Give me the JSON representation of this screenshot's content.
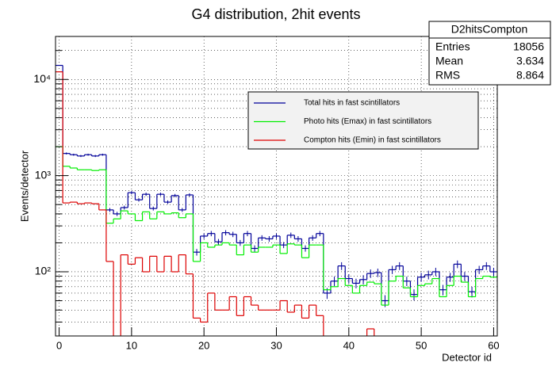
{
  "chart_data": {
    "type": "histogram",
    "title": "G4 distribution, 2hit events",
    "xlabel": "Detector id",
    "ylabel": "Events/detector",
    "log_y": true,
    "grid": true,
    "xlim": [
      -0.5,
      60.5
    ],
    "ylim": [
      21.5,
      28000
    ],
    "xticks": [
      0,
      10,
      20,
      30,
      40,
      50,
      60
    ],
    "yticks": [
      {
        "value": 100,
        "label": "10²"
      },
      {
        "value": 1000,
        "label": "10³"
      },
      {
        "value": 10000,
        "label": "10⁴"
      }
    ],
    "yminor": [
      30,
      40,
      50,
      60,
      70,
      80,
      90,
      200,
      300,
      400,
      500,
      600,
      700,
      800,
      900,
      2000,
      3000,
      4000,
      5000,
      6000,
      7000,
      8000,
      9000,
      20000
    ],
    "x": [
      0,
      1,
      2,
      3,
      4,
      5,
      6,
      7,
      8,
      9,
      10,
      11,
      12,
      13,
      14,
      15,
      16,
      17,
      18,
      19,
      20,
      21,
      22,
      23,
      24,
      25,
      26,
      27,
      28,
      29,
      30,
      31,
      32,
      33,
      34,
      35,
      36,
      37,
      38,
      39,
      40,
      41,
      42,
      43,
      44,
      45,
      46,
      47,
      48,
      49,
      50,
      51,
      52,
      53,
      54,
      55,
      56,
      57,
      58,
      59,
      60
    ],
    "series": [
      {
        "name": "Total hits in fast scintillators",
        "color": "#000099",
        "error_crosses": true,
        "values": [
          14000,
          1700,
          1650,
          1600,
          1650,
          1600,
          1650,
          440,
          400,
          465,
          665,
          560,
          640,
          455,
          640,
          530,
          620,
          440,
          630,
          160,
          235,
          250,
          205,
          255,
          245,
          200,
          250,
          175,
          225,
          220,
          235,
          190,
          240,
          220,
          175,
          225,
          250,
          60,
          80,
          115,
          85,
          76,
          83,
          96,
          98,
          50,
          105,
          115,
          80,
          58,
          88,
          93,
          100,
          65,
          88,
          120,
          90,
          62,
          105,
          115,
          100
        ]
      },
      {
        "name": "Photo hits (Emax) in fast scintillators",
        "color": "#00ee00",
        "error_crosses": false,
        "values": [
          2000,
          1250,
          1200,
          1150,
          1150,
          1130,
          1150,
          320,
          355,
          430,
          400,
          340,
          420,
          355,
          420,
          400,
          410,
          365,
          400,
          128,
          200,
          180,
          190,
          200,
          190,
          150,
          190,
          160,
          180,
          180,
          190,
          155,
          195,
          190,
          140,
          190,
          190,
          65,
          70,
          85,
          72,
          60,
          72,
          78,
          75,
          45,
          80,
          90,
          68,
          55,
          72,
          75,
          85,
          55,
          72,
          90,
          78,
          55,
          85,
          90,
          88
        ]
      },
      {
        "name": "Compton hits (Emin) in fast scintillators",
        "color": "#dd0000",
        "error_crosses": false,
        "values": [
          12000,
          520,
          530,
          510,
          520,
          510,
          440,
          128,
          0,
          150,
          120,
          140,
          100,
          145,
          100,
          145,
          100,
          150,
          95,
          33,
          30,
          60,
          40,
          40,
          55,
          35,
          55,
          45,
          40,
          40,
          40,
          50,
          38,
          45,
          33,
          45,
          35,
          0,
          0,
          0,
          0,
          0,
          0,
          25.5,
          0,
          0,
          0,
          0,
          0,
          0,
          0,
          0,
          0,
          0,
          0,
          0,
          0,
          0,
          0,
          0,
          0
        ]
      }
    ],
    "stats": {
      "title": "D2hitsCompton",
      "rows": [
        [
          "Entries",
          "18056"
        ],
        [
          "Mean",
          "3.634"
        ],
        [
          "RMS",
          "8.864"
        ]
      ]
    }
  }
}
